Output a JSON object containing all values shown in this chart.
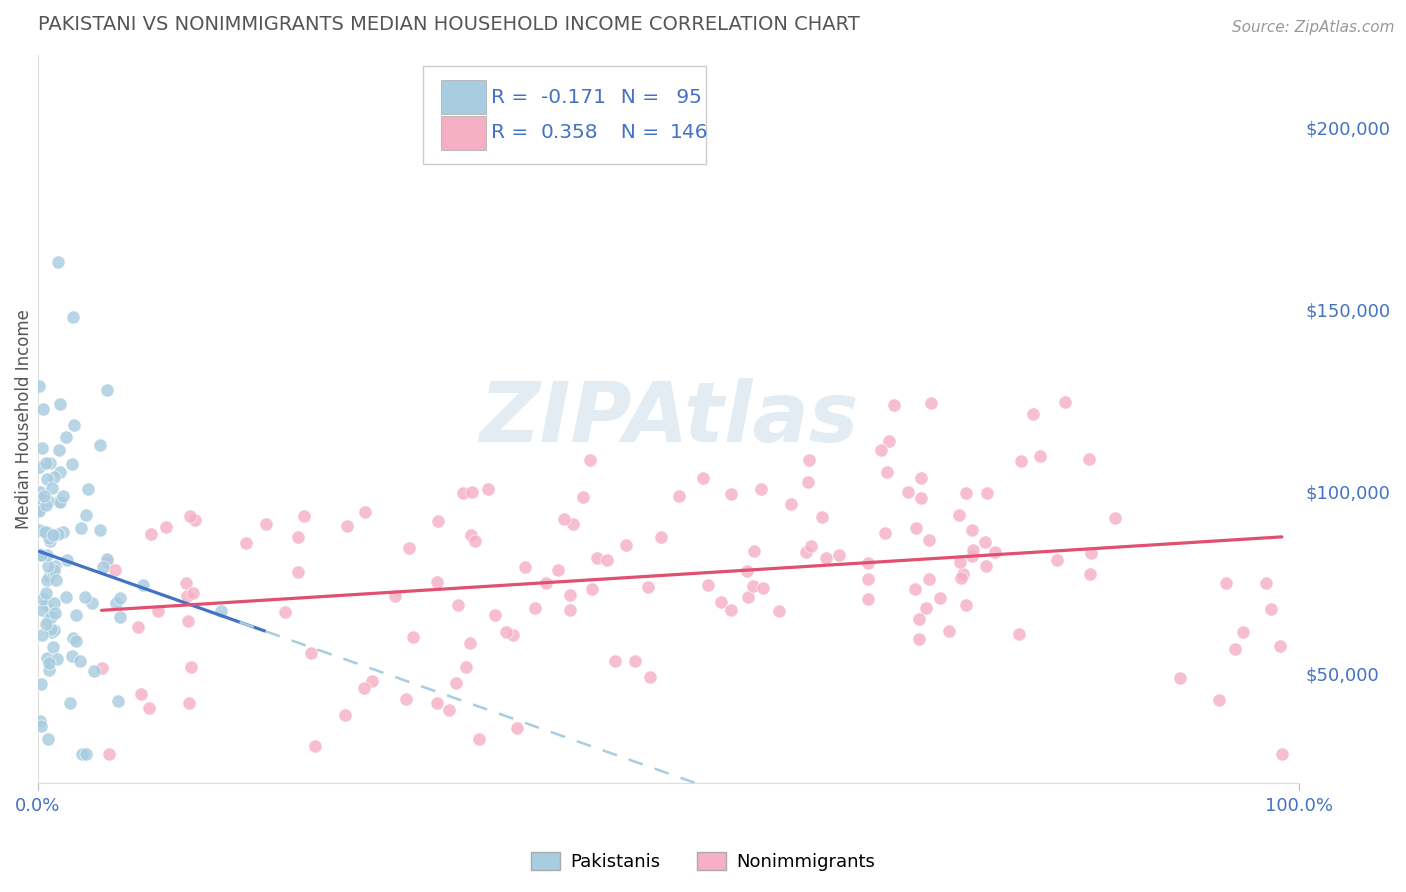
{
  "title": "PAKISTANI VS NONIMMIGRANTS MEDIAN HOUSEHOLD INCOME CORRELATION CHART",
  "source": "Source: ZipAtlas.com",
  "ylabel": "Median Household Income",
  "xlim": [
    0.0,
    1.0
  ],
  "ylim": [
    20000,
    220000
  ],
  "yticks": [
    50000,
    100000,
    150000,
    200000
  ],
  "ytick_labels": [
    "$50,000",
    "$100,000",
    "$150,000",
    "$200,000"
  ],
  "xtick_labels": [
    "0.0%",
    "100.0%"
  ],
  "blue_R": -0.171,
  "blue_N": 95,
  "pink_R": 0.358,
  "pink_N": 146,
  "blue_scatter_color": "#a8cce0",
  "pink_scatter_color": "#f5b0c5",
  "blue_line_color": "#4472c4",
  "pink_line_color": "#e05070",
  "dashed_color": "#a8cce0",
  "legend_label_blue": "Pakistanis",
  "legend_label_pink": "Nonimmigrants",
  "background_color": "#ffffff",
  "grid_color": "#cccccc",
  "title_color": "#555555",
  "ylabel_color": "#555555",
  "tick_color": "#4472c4",
  "source_color": "#999999",
  "all_text_color": "#4472c4",
  "watermark_color": "#c8dae8"
}
